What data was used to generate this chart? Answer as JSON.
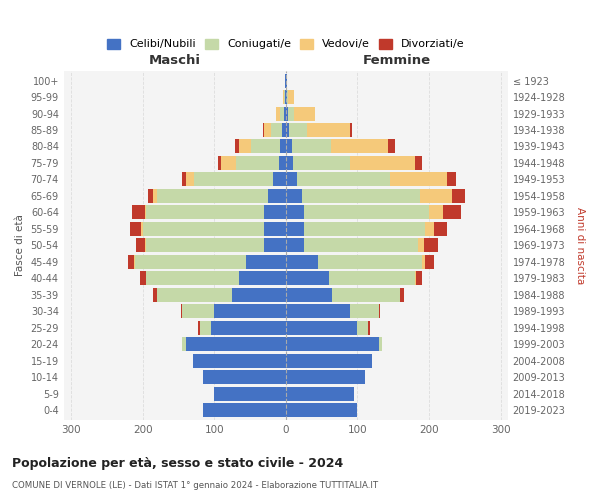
{
  "age_groups": [
    "0-4",
    "5-9",
    "10-14",
    "15-19",
    "20-24",
    "25-29",
    "30-34",
    "35-39",
    "40-44",
    "45-49",
    "50-54",
    "55-59",
    "60-64",
    "65-69",
    "70-74",
    "75-79",
    "80-84",
    "85-89",
    "90-94",
    "95-99",
    "100+"
  ],
  "birth_years": [
    "2019-2023",
    "2014-2018",
    "2009-2013",
    "2004-2008",
    "1999-2003",
    "1994-1998",
    "1989-1993",
    "1984-1988",
    "1979-1983",
    "1974-1978",
    "1969-1973",
    "1964-1968",
    "1959-1963",
    "1954-1958",
    "1949-1953",
    "1944-1948",
    "1939-1943",
    "1934-1938",
    "1929-1933",
    "1924-1928",
    "≤ 1923"
  ],
  "maschi": {
    "celibi": [
      115,
      100,
      115,
      130,
      140,
      105,
      100,
      75,
      65,
      55,
      30,
      30,
      30,
      25,
      18,
      10,
      8,
      5,
      3,
      1,
      1
    ],
    "coniugati": [
      0,
      0,
      0,
      0,
      5,
      15,
      45,
      105,
      130,
      155,
      165,
      170,
      165,
      155,
      110,
      60,
      40,
      15,
      5,
      2,
      0
    ],
    "vedovi": [
      0,
      0,
      0,
      0,
      0,
      0,
      0,
      0,
      0,
      2,
      2,
      2,
      2,
      5,
      12,
      20,
      18,
      10,
      5,
      1,
      0
    ],
    "divorziati": [
      0,
      0,
      0,
      0,
      0,
      2,
      2,
      5,
      8,
      8,
      12,
      16,
      18,
      8,
      5,
      5,
      5,
      2,
      0,
      0,
      0
    ]
  },
  "femmine": {
    "nubili": [
      100,
      95,
      110,
      120,
      130,
      100,
      90,
      65,
      60,
      45,
      25,
      25,
      25,
      22,
      15,
      10,
      8,
      5,
      3,
      1,
      1
    ],
    "coniugate": [
      0,
      0,
      0,
      0,
      5,
      15,
      40,
      95,
      120,
      145,
      160,
      170,
      175,
      165,
      130,
      80,
      55,
      25,
      8,
      2,
      0
    ],
    "vedove": [
      0,
      0,
      0,
      0,
      0,
      0,
      0,
      0,
      2,
      5,
      8,
      12,
      20,
      45,
      80,
      90,
      80,
      60,
      30,
      8,
      0
    ],
    "divorziate": [
      0,
      0,
      0,
      0,
      0,
      2,
      2,
      5,
      8,
      12,
      20,
      18,
      25,
      18,
      12,
      10,
      10,
      3,
      0,
      0,
      0
    ]
  },
  "colors": {
    "celibi": "#4472C4",
    "coniugati": "#c5d9a8",
    "vedovi": "#f5c97a",
    "divorziati": "#c0392b"
  },
  "xlim": 310,
  "title": "Popolazione per età, sesso e stato civile - 2024",
  "subtitle": "COMUNE DI VERNOLE (LE) - Dati ISTAT 1° gennaio 2024 - Elaborazione TUTTITALIA.IT",
  "ylabel": "Fasce di età",
  "right_ylabel": "Anni di nascita",
  "maschi_label": "Maschi",
  "femmine_label": "Femmine",
  "legend_labels": [
    "Celibi/Nubili",
    "Coniugati/e",
    "Vedovi/e",
    "Divorziati/e"
  ],
  "background_color": "#ffffff",
  "plot_bg_color": "#f4f4f4",
  "grid_color": "#dddddd"
}
